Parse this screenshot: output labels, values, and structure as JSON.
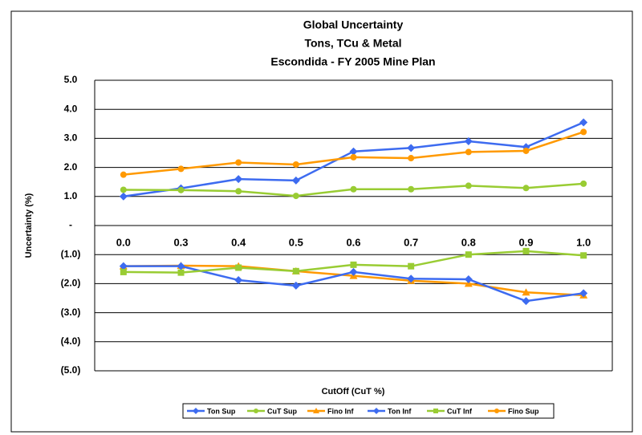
{
  "chart_data": {
    "type": "line",
    "title": [
      "Global Uncertainty",
      "Tons, TCu & Metal",
      "Escondida - FY 2005 Mine Plan"
    ],
    "x_label": "CutOff (CuT %)",
    "y_label": "Uncertainty (%)",
    "categories": [
      "0.0",
      "0.3",
      "0.4",
      "0.5",
      "0.6",
      "0.7",
      "0.8",
      "0.9",
      "1.0"
    ],
    "ylim": [
      -5,
      5
    ],
    "yticks": [
      {
        "value": -5,
        "label": "(5.0)"
      },
      {
        "value": -4,
        "label": "(4.0)"
      },
      {
        "value": -3,
        "label": "(3.0)"
      },
      {
        "value": -2,
        "label": "(2.0)"
      },
      {
        "value": -1,
        "label": "(1.0)"
      },
      {
        "value": 0,
        "label": "-"
      },
      {
        "value": 1,
        "label": "1.0"
      },
      {
        "value": 2,
        "label": "2.0"
      },
      {
        "value": 3,
        "label": "3.0"
      },
      {
        "value": 4,
        "label": "4.0"
      },
      {
        "value": 5,
        "label": "5.0"
      }
    ],
    "grid": true,
    "series": [
      {
        "name": "Ton Sup",
        "color": "#3d6bf0",
        "marker": "diamond",
        "values": [
          1.0,
          1.28,
          1.6,
          1.55,
          2.55,
          2.67,
          2.9,
          2.7,
          3.55
        ]
      },
      {
        "name": "CuT Sup",
        "color": "#99cc33",
        "marker": "circle",
        "values": [
          1.23,
          1.22,
          1.18,
          1.02,
          1.25,
          1.25,
          1.37,
          1.29,
          1.44
        ]
      },
      {
        "name": "Fino Inf",
        "color": "#ff9900",
        "marker": "triangle",
        "values": [
          -1.4,
          -1.38,
          -1.4,
          -1.57,
          -1.73,
          -1.9,
          -2.0,
          -2.3,
          -2.4
        ]
      },
      {
        "name": "Ton Inf",
        "color": "#3d6bf0",
        "marker": "diamond",
        "values": [
          -1.4,
          -1.4,
          -1.88,
          -2.07,
          -1.6,
          -1.83,
          -1.85,
          -2.6,
          -2.33
        ]
      },
      {
        "name": "CuT Inf",
        "color": "#99cc33",
        "marker": "square",
        "values": [
          -1.6,
          -1.62,
          -1.45,
          -1.57,
          -1.35,
          -1.4,
          -1.0,
          -0.88,
          -1.03
        ]
      },
      {
        "name": "Fino Sup",
        "color": "#ff9900",
        "marker": "circle",
        "values": [
          1.75,
          1.95,
          2.17,
          2.1,
          2.35,
          2.32,
          2.53,
          2.57,
          3.22
        ]
      }
    ]
  }
}
